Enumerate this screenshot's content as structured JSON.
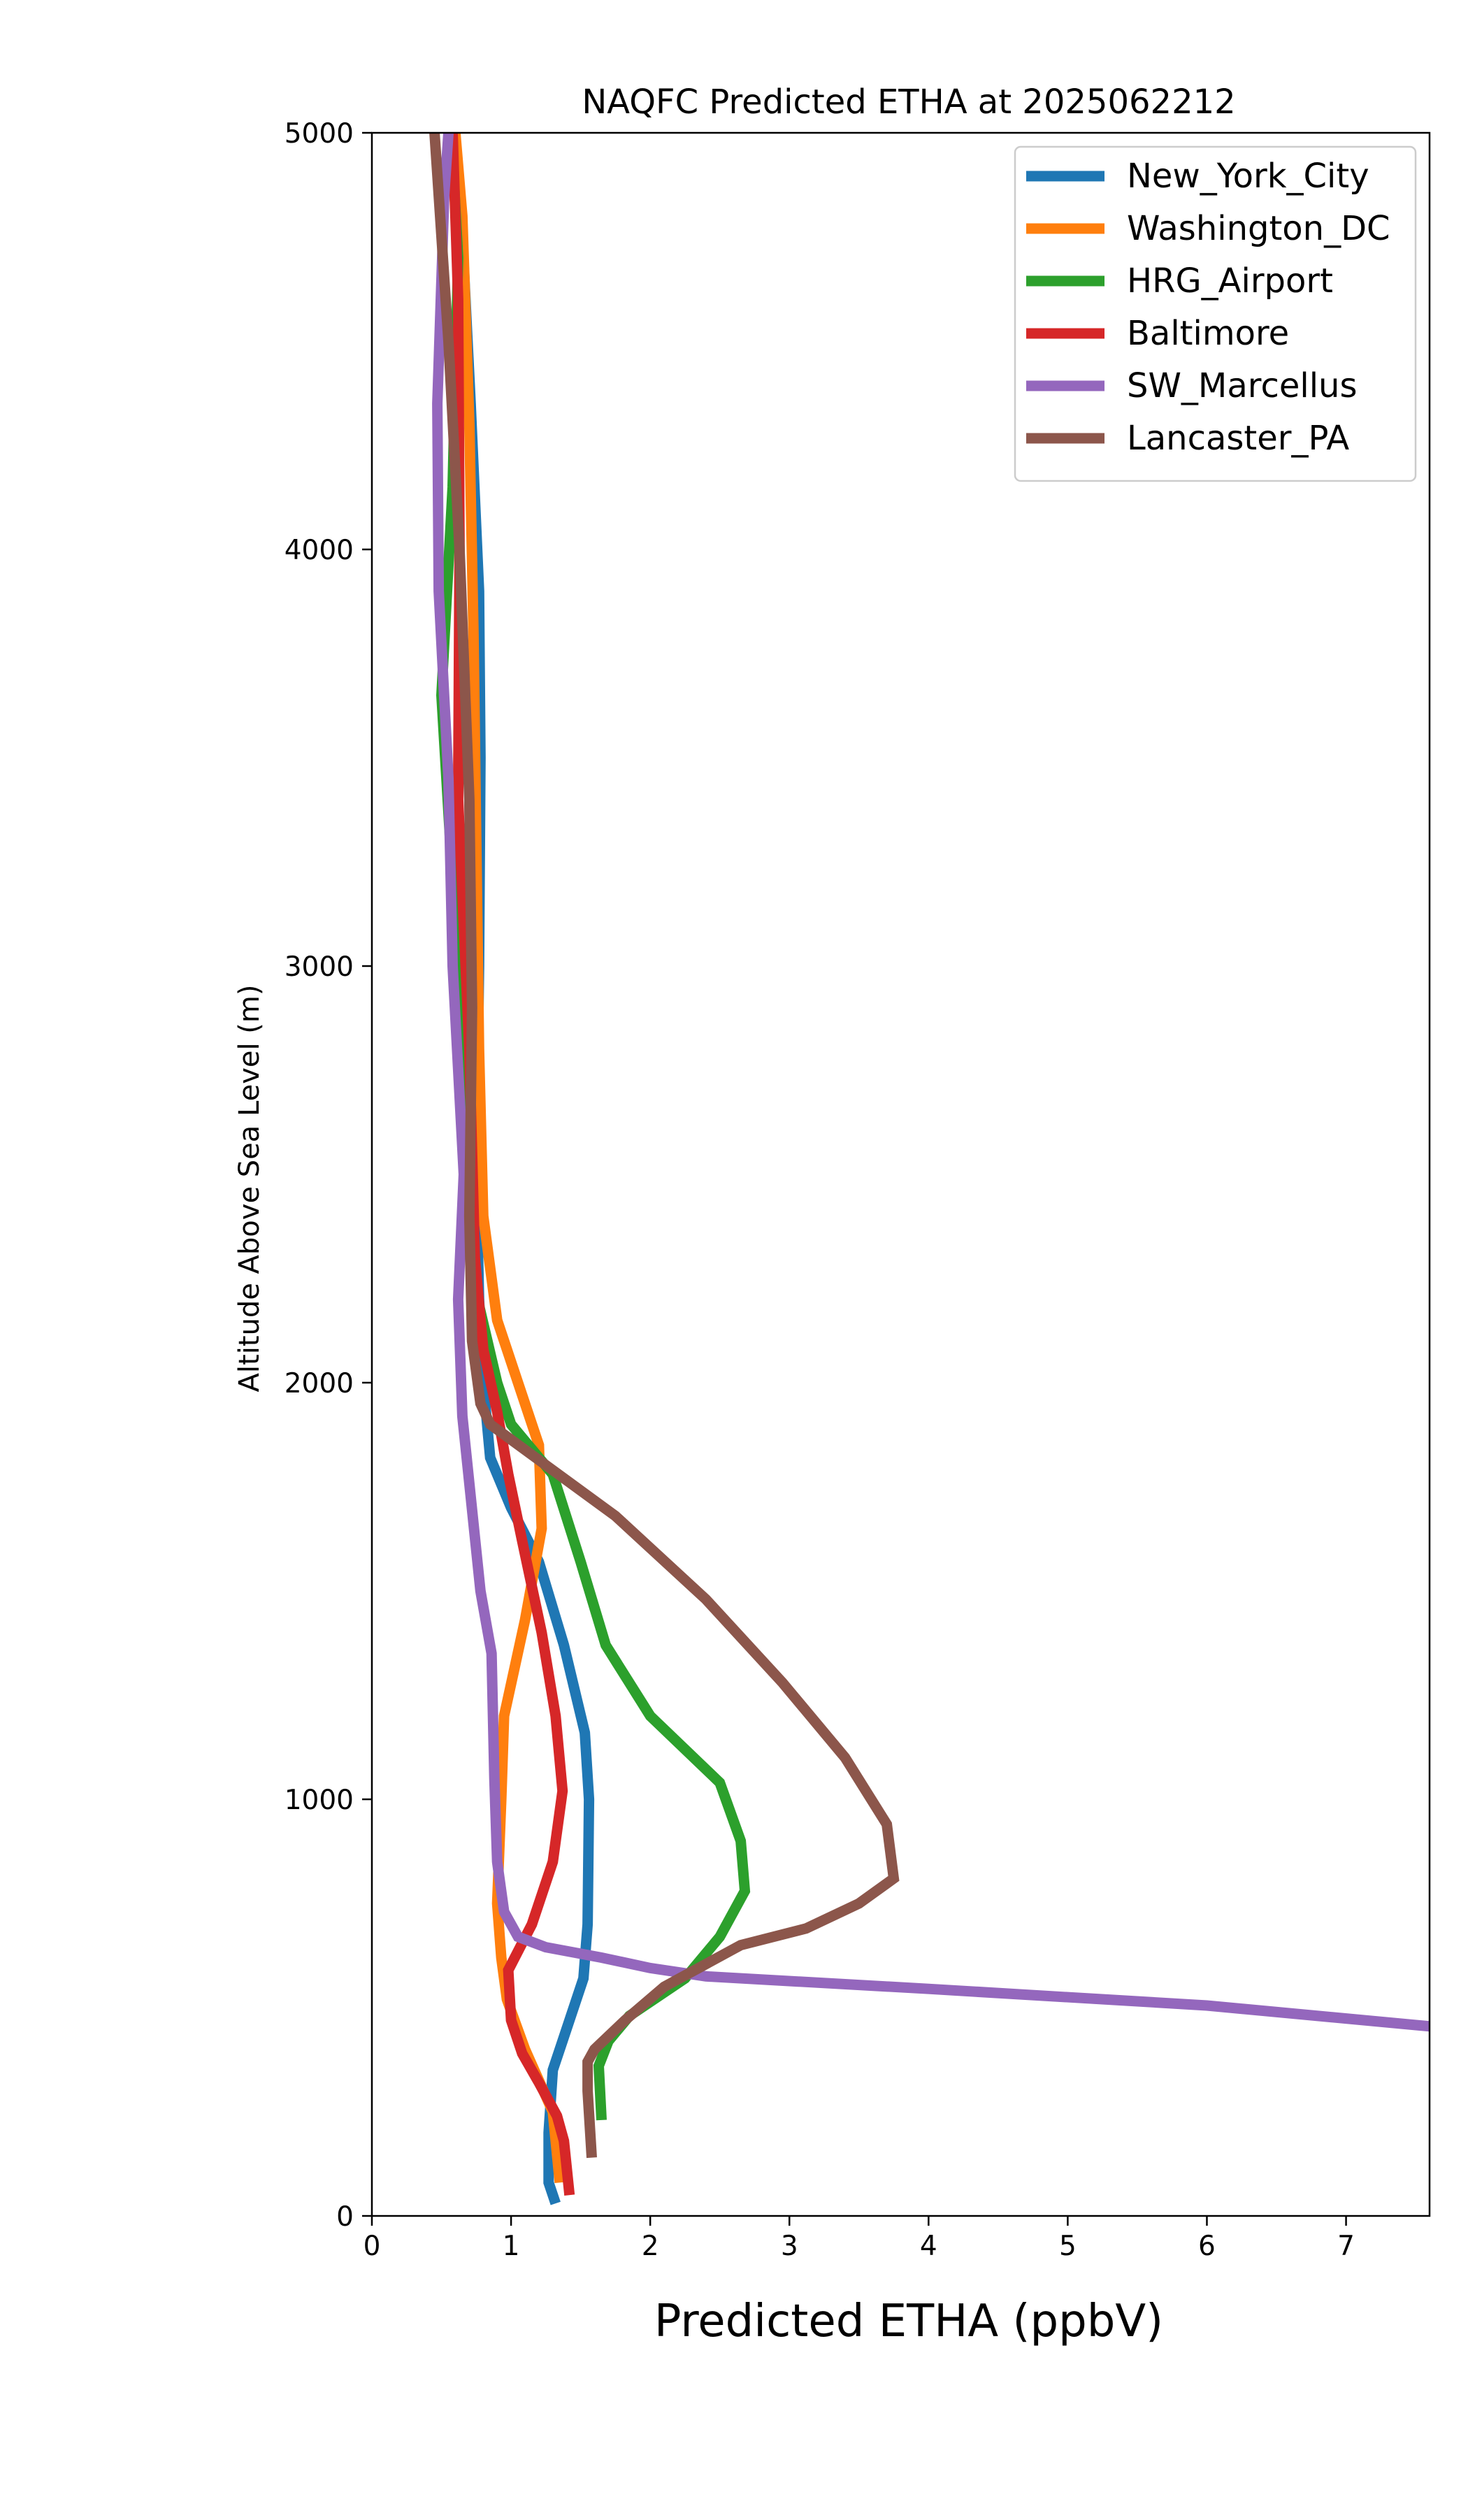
{
  "chart_data": {
    "type": "line",
    "title": "NAQFC Predicted ETHA at 2025062212",
    "xlabel": "Predicted ETHA (ppbV)",
    "ylabel": "Altitude Above Sea Level (m)",
    "xlim": [
      0,
      7.6
    ],
    "ylim": [
      0,
      5000
    ],
    "xticks": [
      "0",
      "1",
      "2",
      "3",
      "4",
      "5",
      "6",
      "7"
    ],
    "yticks": [
      "0",
      "1000",
      "2000",
      "3000",
      "4000",
      "5000"
    ],
    "xtick_values": [
      0,
      1,
      2,
      3,
      4,
      5,
      6,
      7
    ],
    "ytick_values": [
      0,
      1000,
      2000,
      3000,
      4000,
      5000
    ],
    "grid": false,
    "legend_position": "top-right",
    "series": [
      {
        "name": "New_York_City",
        "color": "#1f77b4",
        "points": [
          [
            1.32,
            30
          ],
          [
            1.27,
            80
          ],
          [
            1.27,
            200
          ],
          [
            1.3,
            350
          ],
          [
            1.42,
            470
          ],
          [
            1.52,
            570
          ],
          [
            1.55,
            700
          ],
          [
            1.56,
            1000
          ],
          [
            1.53,
            1160
          ],
          [
            1.38,
            1370
          ],
          [
            1.2,
            1570
          ],
          [
            1.0,
            1700
          ],
          [
            0.85,
            1820
          ],
          [
            0.8,
            2000
          ],
          [
            0.77,
            2200
          ],
          [
            0.75,
            2500
          ],
          [
            0.77,
            3000
          ],
          [
            0.78,
            3500
          ],
          [
            0.77,
            3900
          ],
          [
            0.71,
            4350
          ],
          [
            0.65,
            4750
          ],
          [
            0.58,
            5000
          ]
        ]
      },
      {
        "name": "Washington_DC",
        "color": "#ff7f0e",
        "points": [
          [
            1.35,
            80
          ],
          [
            1.3,
            250
          ],
          [
            1.1,
            400
          ],
          [
            0.97,
            520
          ],
          [
            0.93,
            620
          ],
          [
            0.9,
            750
          ],
          [
            0.93,
            1000
          ],
          [
            0.95,
            1200
          ],
          [
            1.1,
            1430
          ],
          [
            1.22,
            1650
          ],
          [
            1.2,
            1850
          ],
          [
            1.05,
            2000
          ],
          [
            0.9,
            2150
          ],
          [
            0.8,
            2400
          ],
          [
            0.77,
            2800
          ],
          [
            0.75,
            3300
          ],
          [
            0.73,
            3800
          ],
          [
            0.7,
            4300
          ],
          [
            0.65,
            4800
          ],
          [
            0.6,
            5000
          ]
        ]
      },
      {
        "name": "HRG_Airport",
        "color": "#2ca02c",
        "points": [
          [
            1.65,
            230
          ],
          [
            1.63,
            360
          ],
          [
            1.7,
            420
          ],
          [
            1.85,
            480
          ],
          [
            2.25,
            570
          ],
          [
            2.5,
            670
          ],
          [
            2.68,
            780
          ],
          [
            2.65,
            900
          ],
          [
            2.5,
            1040
          ],
          [
            2.0,
            1200
          ],
          [
            1.68,
            1370
          ],
          [
            1.5,
            1570
          ],
          [
            1.3,
            1780
          ],
          [
            1.0,
            1900
          ],
          [
            0.9,
            2000
          ],
          [
            0.76,
            2200
          ],
          [
            0.65,
            2600
          ],
          [
            0.58,
            3200
          ],
          [
            0.5,
            3650
          ],
          [
            0.58,
            4150
          ],
          [
            0.62,
            4700
          ],
          [
            0.57,
            5000
          ]
        ]
      },
      {
        "name": "Baltimore",
        "color": "#d62728",
        "points": [
          [
            1.42,
            50
          ],
          [
            1.38,
            180
          ],
          [
            1.33,
            240
          ],
          [
            1.2,
            320
          ],
          [
            1.08,
            390
          ],
          [
            1.0,
            470
          ],
          [
            0.98,
            590
          ],
          [
            1.15,
            700
          ],
          [
            1.3,
            850
          ],
          [
            1.37,
            1020
          ],
          [
            1.32,
            1200
          ],
          [
            1.22,
            1400
          ],
          [
            1.08,
            1620
          ],
          [
            0.98,
            1780
          ],
          [
            0.9,
            1930
          ],
          [
            0.8,
            2080
          ],
          [
            0.74,
            2300
          ],
          [
            0.7,
            2800
          ],
          [
            0.62,
            3400
          ],
          [
            0.63,
            4000
          ],
          [
            0.62,
            4600
          ],
          [
            0.58,
            5000
          ]
        ]
      },
      {
        "name": "SW_Marcellus",
        "color": "#9467bd",
        "points": [
          [
            7.6,
            455
          ],
          [
            6.0,
            505
          ],
          [
            4.0,
            545
          ],
          [
            2.4,
            575
          ],
          [
            2.0,
            595
          ],
          [
            1.65,
            620
          ],
          [
            1.25,
            645
          ],
          [
            1.05,
            670
          ],
          [
            0.95,
            730
          ],
          [
            0.9,
            850
          ],
          [
            0.88,
            1050
          ],
          [
            0.86,
            1350
          ],
          [
            0.78,
            1500
          ],
          [
            0.65,
            1920
          ],
          [
            0.62,
            2200
          ],
          [
            0.66,
            2500
          ],
          [
            0.58,
            3000
          ],
          [
            0.55,
            3450
          ],
          [
            0.48,
            3900
          ],
          [
            0.47,
            4350
          ],
          [
            0.52,
            4850
          ],
          [
            0.55,
            5000
          ]
        ]
      },
      {
        "name": "Lancaster_PA",
        "color": "#8c564b",
        "points": [
          [
            1.58,
            140
          ],
          [
            1.55,
            300
          ],
          [
            1.55,
            370
          ],
          [
            1.6,
            400
          ],
          [
            1.82,
            470
          ],
          [
            2.1,
            550
          ],
          [
            2.65,
            650
          ],
          [
            3.12,
            690
          ],
          [
            3.5,
            750
          ],
          [
            3.75,
            810
          ],
          [
            3.7,
            940
          ],
          [
            3.4,
            1100
          ],
          [
            2.95,
            1280
          ],
          [
            2.4,
            1480
          ],
          [
            1.75,
            1680
          ],
          [
            1.3,
            1790
          ],
          [
            0.85,
            1900
          ],
          [
            0.78,
            1950
          ],
          [
            0.72,
            2100
          ],
          [
            0.7,
            2400
          ],
          [
            0.72,
            2900
          ],
          [
            0.7,
            3400
          ],
          [
            0.63,
            4000
          ],
          [
            0.55,
            4500
          ],
          [
            0.47,
            4900
          ],
          [
            0.45,
            5000
          ]
        ]
      }
    ]
  }
}
